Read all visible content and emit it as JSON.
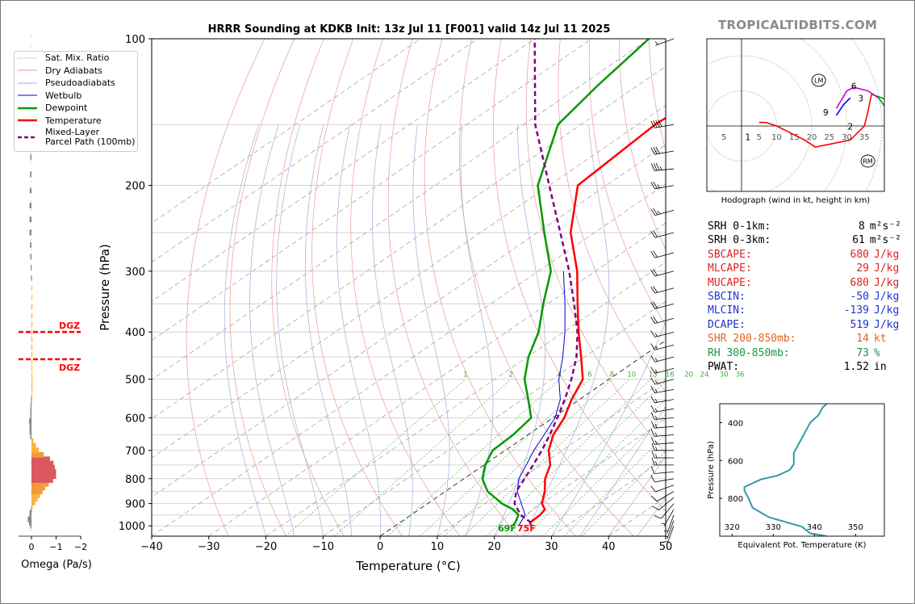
{
  "brand": "TROPICALTIDBITS.COM",
  "chart_data": [
    {
      "type": "line",
      "subtype": "skew-t log-p sounding",
      "title": "HRRR Sounding at KDKB Init: 13z Jul 11 [F001] valid 14z Jul 11 2025",
      "xlabel": "Temperature (°C)",
      "ylabel": "Pressure (hPa)",
      "x_ticks": [
        "−40",
        "−30",
        "−20",
        "−10",
        "0",
        "10",
        "20",
        "30",
        "40",
        "50"
      ],
      "y_ticks": [
        "100",
        "200",
        "300",
        "400",
        "500",
        "600",
        "700",
        "800",
        "900",
        "1000"
      ],
      "xlim": [
        -40,
        50
      ],
      "ylim": [
        1050,
        100
      ],
      "y_scale": "log",
      "grid": true,
      "legend_position": "left",
      "legend": [
        "Sat. Mix. Ratio",
        "Dry Adiabats",
        "Pseudoadiabats",
        "Wetbulb",
        "Dewpoint",
        "Temperature",
        "Mixed-Layer\nParcel Path (100mb)"
      ],
      "mixing_ratio_labels": [
        "1",
        "2",
        "4",
        "6",
        "8",
        "10",
        "13",
        "16",
        "20",
        "24",
        "30",
        "36"
      ],
      "surface_dewpoint_label": "69F",
      "surface_temperature_label": "75F",
      "series": [
        {
          "name": "Temperature",
          "color": "#ff0000",
          "p": [
            1000,
            985,
            950,
            925,
            900,
            850,
            800,
            750,
            700,
            650,
            600,
            550,
            500,
            450,
            400,
            350,
            300,
            250,
            200,
            150,
            125,
            100
          ],
          "t": [
            23.8,
            22.8,
            22.6,
            22.0,
            20.0,
            17.4,
            14.2,
            11.6,
            7.6,
            4.4,
            2.0,
            -1.4,
            -4.6,
            -10.6,
            -17.4,
            -24.8,
            -33.2,
            -44.2,
            -55.0,
            -57.0,
            -56.0,
            -55.0
          ]
        },
        {
          "name": "Dewpoint",
          "color": "#009900",
          "p": [
            1000,
            985,
            950,
            925,
            900,
            850,
            800,
            750,
            700,
            650,
            600,
            550,
            500,
            450,
            400,
            350,
            300,
            250,
            200,
            150,
            125,
            100
          ],
          "t": [
            20.6,
            20.2,
            18.8,
            16.4,
            13.0,
            7.4,
            3.2,
            0.2,
            -2.2,
            -2.6,
            -3.8,
            -9.0,
            -14.8,
            -19.8,
            -24.4,
            -30.8,
            -37.8,
            -48.8,
            -62.0,
            -74.0,
            -77.0,
            -80.0
          ]
        },
        {
          "name": "Wetbulb",
          "color": "#0000dd",
          "p": [
            1000,
            950,
            900,
            850,
            800,
            750,
            700,
            650,
            600,
            550,
            500,
            450,
            400,
            350,
            300
          ],
          "t": [
            21.6,
            20.0,
            16.4,
            12.6,
            9.6,
            7.4,
            5.0,
            2.8,
            0.4,
            -3.4,
            -8.8,
            -13.8,
            -19.8,
            -27.0,
            -35.6
          ]
        },
        {
          "name": "Mixed-Layer\nParcel Path (100mb)",
          "color": "#800080",
          "p": [
            985,
            950,
            900,
            850,
            800,
            750,
            700,
            650,
            600,
            550,
            500,
            450,
            400,
            350,
            300,
            250,
            200,
            150,
            100
          ],
          "t": [
            23.0,
            19.2,
            15.2,
            12.4,
            10.6,
            8.6,
            6.4,
            3.8,
            0.8,
            -2.6,
            -6.6,
            -11.4,
            -17.6,
            -25.4,
            -34.6,
            -46.0,
            -60.0,
            -78.0,
            -100.0
          ]
        }
      ]
    },
    {
      "type": "line",
      "title": "Hodograph (wind in kt, height in km)",
      "ring_labels": [
        "5",
        "5",
        "10",
        "15",
        "20",
        "25",
        "30",
        "35"
      ],
      "markers": [
        "LM",
        "RM"
      ],
      "height_labels": [
        "1",
        "2",
        "3",
        "6",
        "9"
      ],
      "series": [
        {
          "name": "0-1 km",
          "color": "#ff0000",
          "u": [
            5,
            7,
            10,
            14,
            18,
            21,
            26,
            31
          ],
          "v": [
            1,
            1,
            0,
            -2,
            -4,
            -6,
            -5,
            -4
          ]
        },
        {
          "name": "1-3 km",
          "color": "#ff0000",
          "u": [
            31,
            33,
            35,
            36,
            37
          ],
          "v": [
            -4,
            -2,
            0,
            4,
            9
          ]
        },
        {
          "name": "3-6 km",
          "color": "#009900",
          "u": [
            37,
            40,
            44,
            45,
            42,
            39
          ],
          "v": [
            9,
            8,
            6,
            5,
            4,
            8
          ]
        },
        {
          "name": "6-9 km",
          "color": "#cc00cc",
          "u": [
            39,
            36,
            32,
            30,
            27
          ],
          "v": [
            8,
            10,
            11,
            10,
            5
          ]
        },
        {
          "name": "9+ km",
          "color": "#0000ff",
          "u": [
            27,
            29,
            31
          ],
          "v": [
            3,
            6,
            8
          ]
        }
      ],
      "lm": {
        "u": 22,
        "v": 13
      },
      "rm": {
        "u": 36,
        "v": -10
      }
    },
    {
      "type": "line",
      "xlabel": "Equivalent Pot. Temperature (K)",
      "ylabel": "Pressure (hPa)",
      "x_ticks": [
        "320",
        "330",
        "340",
        "350"
      ],
      "y_ticks": [
        "400",
        "600",
        "800"
      ],
      "xlim": [
        317,
        357
      ],
      "ylim": [
        1000,
        300
      ],
      "series": [
        {
          "name": "Theta-E",
          "color": "#3399aa",
          "p": [
            1000,
            985,
            950,
            925,
            900,
            850,
            800,
            760,
            740,
            720,
            700,
            680,
            650,
            620,
            600,
            560,
            520,
            480,
            440,
            400,
            360,
            320,
            300
          ],
          "theta_e": [
            343,
            339,
            337,
            333,
            329,
            325,
            324,
            323,
            323,
            325,
            327,
            331,
            334,
            335,
            335,
            335,
            336,
            337,
            338,
            339,
            341,
            342,
            343
          ]
        }
      ]
    },
    {
      "type": "bar",
      "xlabel": "Omega (Pa/s)",
      "x_ticks": [
        "0",
        "−1",
        "−2"
      ],
      "xlim": [
        0.1,
        -2.3
      ],
      "p": [
        1000,
        985,
        970,
        955,
        940,
        925,
        910,
        895,
        880,
        865,
        850,
        835,
        820,
        805,
        790,
        775,
        760,
        745,
        730,
        715,
        700,
        685,
        670,
        655,
        640,
        625,
        610,
        595,
        580,
        565,
        550,
        535,
        520,
        505,
        490,
        475,
        460,
        445,
        430,
        415,
        400,
        385,
        370,
        355,
        340,
        325,
        310,
        295,
        280,
        265,
        250,
        235,
        220,
        205,
        190,
        175,
        160,
        145,
        130,
        115
      ],
      "omega": [
        0.05,
        0.1,
        0.15,
        0.08,
        0.08,
        0.02,
        -0.05,
        -0.15,
        -0.25,
        -0.35,
        -0.45,
        -0.55,
        -0.7,
        -0.88,
        -1.0,
        -1.0,
        -0.95,
        -0.9,
        -0.75,
        -0.5,
        -0.3,
        -0.18,
        -0.08,
        0.05,
        0.08,
        0.08,
        0.1,
        0.05,
        0.05,
        0.04,
        0.02,
        -0.01,
        -0.02,
        -0.02,
        -0.01,
        0,
        0,
        0,
        -0.02,
        -0.02,
        -0.03,
        -0.04,
        -0.03,
        -0.02,
        -0.01,
        0,
        0.02,
        0.03,
        0.05,
        0.06,
        0.08,
        0.08,
        0.08,
        0.07,
        0.06,
        0.05,
        0.04,
        0.03,
        0.02,
        0.01
      ],
      "dgz_label": "DGZ",
      "dgz_pressures": [
        400,
        455
      ]
    }
  ],
  "stats": [
    {
      "label": "SRH 0-1km:",
      "value": "8",
      "unit": "m²s⁻²",
      "color": "#000000"
    },
    {
      "label": "SRH 0-3km:",
      "value": "61",
      "unit": "m²s⁻²",
      "color": "#000000"
    },
    {
      "label": "SBCAPE:",
      "value": "680",
      "unit": "J/kg",
      "color": "#dd2222"
    },
    {
      "label": "MLCAPE:",
      "value": "29",
      "unit": "J/kg",
      "color": "#dd2222"
    },
    {
      "label": "MUCAPE:",
      "value": "680",
      "unit": "J/kg",
      "color": "#dd2222"
    },
    {
      "label": "SBCIN:",
      "value": "-50",
      "unit": "J/kg",
      "color": "#2233cc"
    },
    {
      "label": "MLCIN:",
      "value": "-139",
      "unit": "J/kg",
      "color": "#2233cc"
    },
    {
      "label": "DCAPE:",
      "value": "519",
      "unit": "J/kg",
      "color": "#2233cc"
    },
    {
      "label": "SHR 200-850mb:",
      "value": "14",
      "unit": "kt",
      "color": "#dd6622"
    },
    {
      "label": "RH 300-850mb:",
      "value": "73",
      "unit": "%",
      "color": "#119944"
    },
    {
      "label": "PWAT:",
      "value": "1.52",
      "unit": "in",
      "color": "#000000"
    }
  ],
  "winds": {
    "p": [
      100,
      150,
      170,
      185,
      200,
      225,
      250,
      275,
      300,
      325,
      350,
      375,
      400,
      425,
      450,
      475,
      500,
      525,
      550,
      575,
      600,
      625,
      650,
      675,
      700,
      725,
      750,
      775,
      800,
      825,
      850,
      875,
      900,
      925,
      950,
      975,
      1000
    ],
    "dir": [
      250,
      260,
      260,
      265,
      260,
      255,
      255,
      255,
      255,
      255,
      255,
      255,
      255,
      255,
      255,
      255,
      255,
      260,
      260,
      260,
      265,
      265,
      265,
      265,
      270,
      270,
      270,
      265,
      260,
      250,
      240,
      230,
      220,
      210,
      200,
      200,
      200
    ],
    "kt": [
      5,
      40,
      30,
      35,
      25,
      25,
      20,
      20,
      20,
      20,
      20,
      20,
      15,
      15,
      15,
      15,
      15,
      15,
      15,
      15,
      15,
      15,
      15,
      15,
      15,
      15,
      15,
      10,
      10,
      10,
      10,
      10,
      10,
      5,
      5,
      5,
      5
    ]
  }
}
